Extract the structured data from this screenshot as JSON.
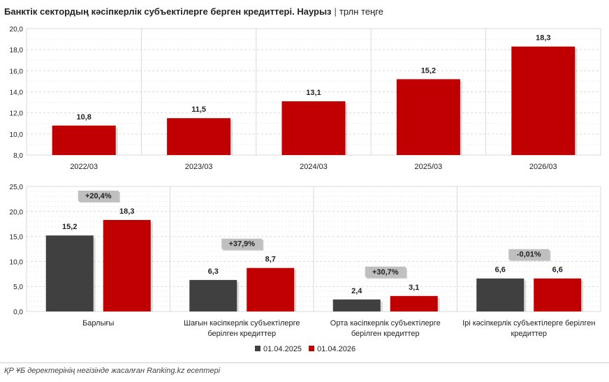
{
  "header": {
    "title": "Банктік сектордың кәсіпкерлік субъектілерге берген кредиттері. Наурыз",
    "separator": "|",
    "unit": "трлн теңге"
  },
  "footer": {
    "source": "ҚР ҰБ деректерінің негізінде жасалған Ranking.kz есептері"
  },
  "colors": {
    "red": "#c00000",
    "dark": "#404040",
    "badge": "#bfbfbf",
    "grid": "#d9d9d9"
  },
  "chart_data": [
    {
      "type": "bar",
      "title": "",
      "categories": [
        "2022/03",
        "2023/03",
        "2024/03",
        "2025/03",
        "2026/03"
      ],
      "values": [
        10.8,
        11.5,
        13.1,
        15.2,
        18.3
      ],
      "value_labels": [
        "10,8",
        "11,5",
        "13,1",
        "15,2",
        "18,3"
      ],
      "ylim": [
        8.0,
        20.0
      ],
      "yticks": [
        "8,0",
        "10,0",
        "12,0",
        "14,0",
        "16,0",
        "18,0",
        "20,0"
      ],
      "ytick_step": 2.0,
      "grid": true,
      "legend": false
    },
    {
      "type": "bar",
      "title": "",
      "categories": [
        [
          "Барлығы"
        ],
        [
          "Шағын кәсіпкерлік субъектілерге",
          "берілген кредиттер"
        ],
        [
          "Орта кәсіпкерлік субъектілерге",
          "берілген кредиттер"
        ],
        [
          "Ірі кәсіпкерлік субъектілерге берілген",
          "кредиттер"
        ]
      ],
      "series": [
        {
          "name": "01.04.2025",
          "values": [
            15.2,
            6.3,
            2.4,
            6.6
          ],
          "labels": [
            "15,2",
            "6,3",
            "2,4",
            "6,6"
          ]
        },
        {
          "name": "01.04.2026",
          "values": [
            18.3,
            8.7,
            3.1,
            6.6
          ],
          "labels": [
            "18,3",
            "8,7",
            "3,1",
            "6,6"
          ]
        }
      ],
      "changes": [
        "+20,4%",
        "+37,9%",
        "+30,7%",
        "-0,01%"
      ],
      "ylim": [
        0,
        25
      ],
      "yticks": [
        "0,0",
        "5,0",
        "10,0",
        "15,0",
        "20,0",
        "25,0"
      ],
      "ytick_step": 5,
      "grid": true,
      "legend": "bottom-center"
    }
  ]
}
